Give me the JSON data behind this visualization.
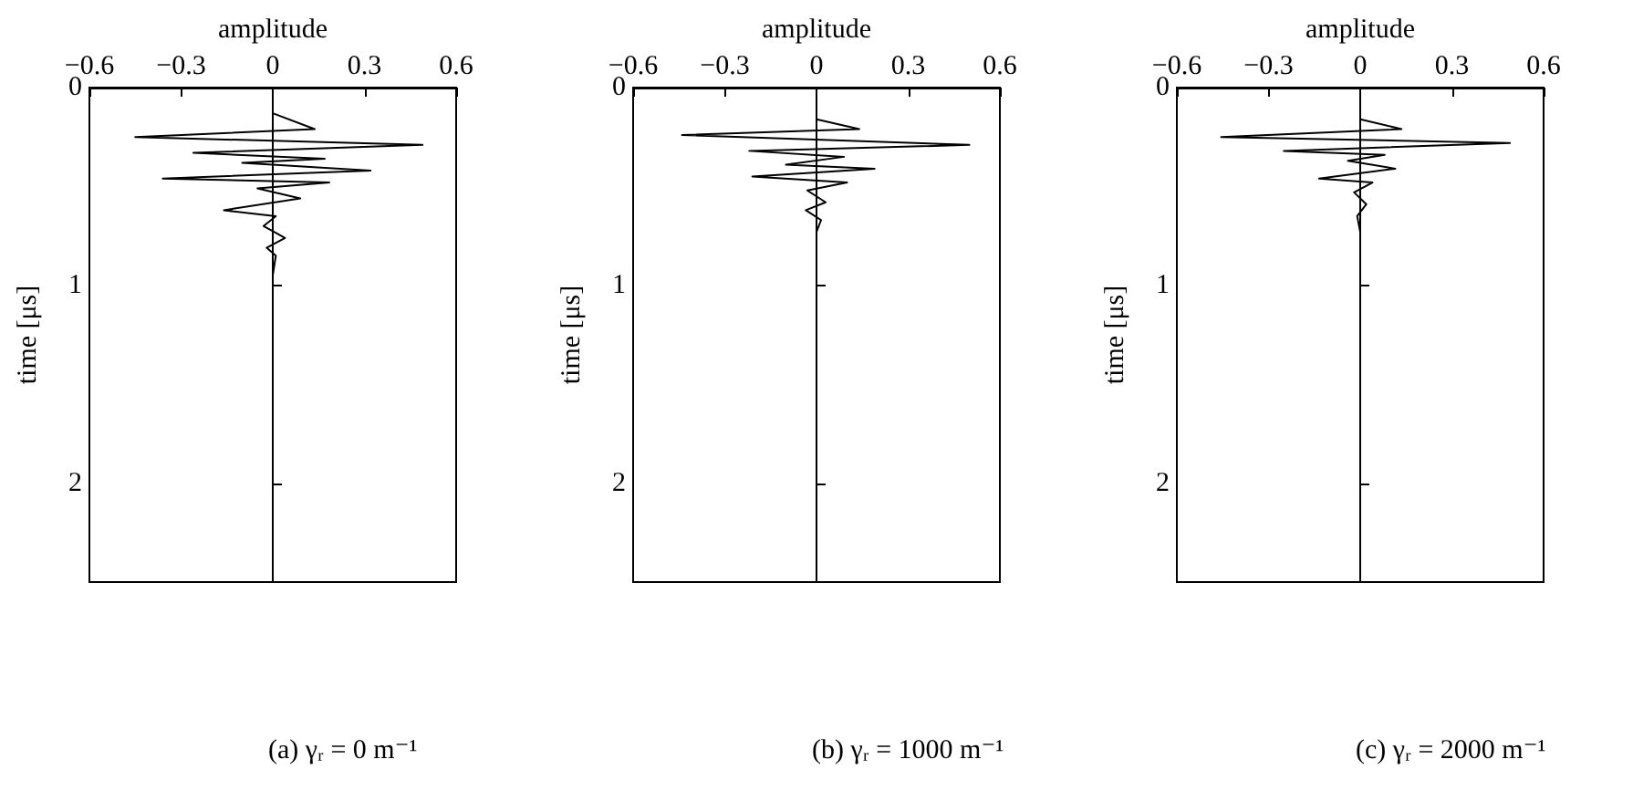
{
  "chart_data": [
    {
      "type": "line",
      "xlabel": "amplitude",
      "ylabel": "time [μs]",
      "xlim": [
        -0.6,
        0.6
      ],
      "xticks": [
        -0.6,
        -0.3,
        0,
        0.3,
        0.6
      ],
      "ylim": [
        2.5,
        0
      ],
      "yticks": [
        0,
        1,
        2
      ],
      "marker": "none",
      "line_style": "solid",
      "annotations": [
        "(a) γᵣ = 0 m⁻¹"
      ],
      "series": [
        {
          "color": "#000000",
          "x": [
            0,
            0,
            0.137,
            -0.45,
            0.49,
            -0.26,
            0.17,
            -0.1,
            0.32,
            -0.36,
            0.185,
            -0.05,
            0.09,
            -0.16,
            0.01,
            -0.03,
            0.04,
            -0.02,
            0.01,
            0,
            0
          ],
          "values": [
            0,
            0.13,
            0.21,
            0.25,
            0.29,
            0.33,
            0.36,
            0.38,
            0.42,
            0.46,
            0.48,
            0.51,
            0.56,
            0.62,
            0.65,
            0.7,
            0.76,
            0.81,
            0.85,
            0.95,
            2.5
          ]
        }
      ]
    },
    {
      "type": "line",
      "xlabel": "amplitude",
      "ylabel": "time [μs]",
      "xlim": [
        -0.6,
        0.6
      ],
      "xticks": [
        -0.6,
        -0.3,
        0,
        0.3,
        0.6
      ],
      "ylim": [
        2.5,
        0
      ],
      "yticks": [
        0,
        1,
        2
      ],
      "marker": "none",
      "line_style": "solid",
      "annotations": [
        "(b) γᵣ = 1000 m⁻¹"
      ],
      "series": [
        {
          "color": "#000000",
          "x": [
            0,
            0,
            0.14,
            -0.44,
            0.5,
            -0.22,
            0.09,
            -0.1,
            0.19,
            -0.21,
            0.1,
            -0.03,
            0.03,
            -0.035,
            0.015,
            0,
            0
          ],
          "values": [
            0,
            0.16,
            0.21,
            0.24,
            0.29,
            0.32,
            0.35,
            0.39,
            0.41,
            0.45,
            0.48,
            0.52,
            0.58,
            0.62,
            0.67,
            0.73,
            2.5
          ]
        }
      ]
    },
    {
      "type": "line",
      "xlabel": "amplitude",
      "ylabel": "time [μs]",
      "xlim": [
        -0.6,
        0.6
      ],
      "xticks": [
        -0.6,
        -0.3,
        0,
        0.3,
        0.6
      ],
      "ylim": [
        2.5,
        0
      ],
      "yticks": [
        0,
        1,
        2
      ],
      "marker": "none",
      "line_style": "solid",
      "annotations": [
        "(c) γᵣ = 2000 m⁻¹"
      ],
      "series": [
        {
          "color": "#000000",
          "x": [
            0,
            0,
            0.135,
            -0.455,
            0.49,
            -0.25,
            0.08,
            -0.04,
            0.115,
            -0.135,
            0.04,
            -0.02,
            0.02,
            -0.01,
            0,
            0
          ],
          "values": [
            0,
            0.16,
            0.21,
            0.25,
            0.28,
            0.32,
            0.34,
            0.37,
            0.41,
            0.46,
            0.48,
            0.53,
            0.59,
            0.65,
            0.73,
            2.5
          ]
        }
      ]
    }
  ]
}
